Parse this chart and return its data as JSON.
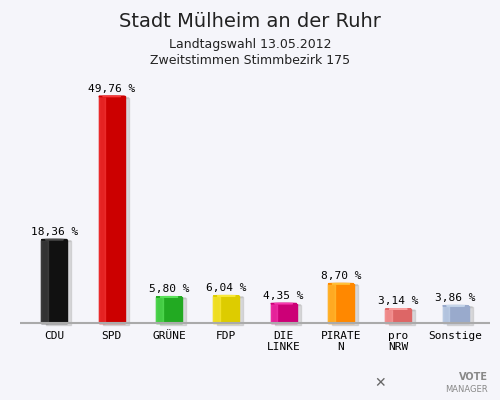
{
  "title": "Stadt Mülheim an der Ruhr",
  "subtitle1": "Landtagswahl 13.05.2012",
  "subtitle2": "Zweitstimmen Stimmbezirk 175",
  "categories": [
    "CDU",
    "SPD",
    "GRÜNE",
    "FDP",
    "DIE\nLINKE",
    "PIRATE\nN",
    "pro\nNRW",
    "Sonstige"
  ],
  "values": [
    18.36,
    49.76,
    5.8,
    6.04,
    4.35,
    8.7,
    3.14,
    3.86
  ],
  "bar_colors": [
    "#111111",
    "#cc0000",
    "#22aa22",
    "#ddcc00",
    "#cc0077",
    "#ff8800",
    "#dd6666",
    "#99aacc"
  ],
  "bar_colors_light": [
    "#555555",
    "#ff4444",
    "#66ee66",
    "#ffee44",
    "#ff44bb",
    "#ffcc44",
    "#ffaaaa",
    "#ccddf0"
  ],
  "value_labels": [
    "18,36 %",
    "49,76 %",
    "5,80 %",
    "6,04 %",
    "4,35 %",
    "8,70 %",
    "3,14 %",
    "3,86 %"
  ],
  "tick_labels": [
    "CDU",
    "SPD",
    "GRÜNE",
    "FDP",
    "DIE\nLINKE",
    "PIRATE\nN",
    "pro\nNRW",
    "Sonstige"
  ],
  "ylim": [
    0,
    56
  ],
  "background_color": "#e8e8ee",
  "title_fontsize": 14,
  "subtitle_fontsize": 9,
  "bar_value_fontsize": 8,
  "tick_fontsize": 8
}
